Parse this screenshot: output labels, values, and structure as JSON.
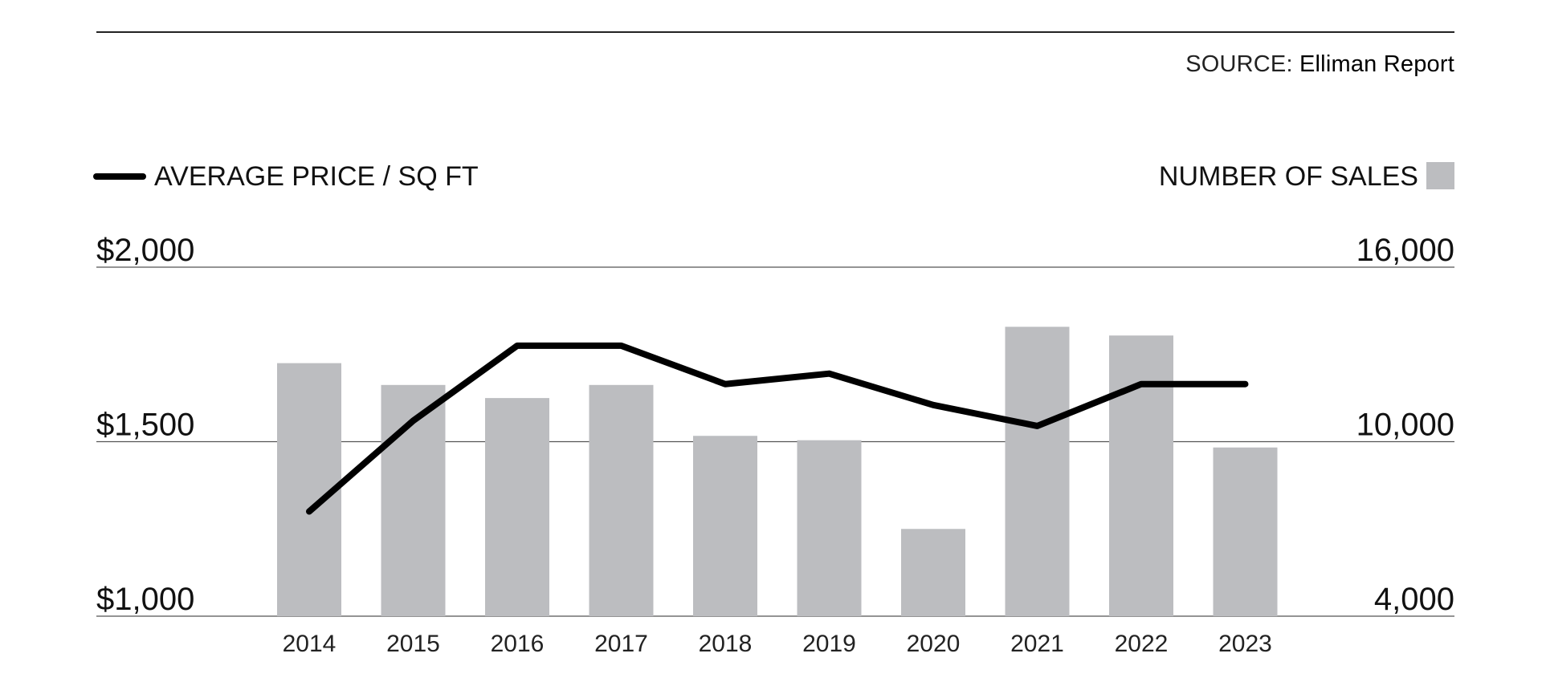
{
  "source": {
    "label": "SOURCE:",
    "name": "Elliman Report"
  },
  "legend": {
    "line_label": "AVERAGE PRICE / SQ FT",
    "bar_label": "NUMBER OF SALES"
  },
  "colors": {
    "line": "#000000",
    "bar": "#bcbdc0",
    "grid": "#555555"
  },
  "chart_data": {
    "type": "bar+line",
    "categories": [
      "2014",
      "2015",
      "2016",
      "2017",
      "2018",
      "2019",
      "2020",
      "2021",
      "2022",
      "2023"
    ],
    "bar_series": {
      "name": "NUMBER OF SALES",
      "axis": "right",
      "values": [
        12700,
        11950,
        11500,
        11950,
        10200,
        10050,
        7000,
        13950,
        13650,
        9800
      ]
    },
    "line_series": {
      "name": "AVERAGE PRICE / SQ FT",
      "axis": "left",
      "values": [
        1300,
        1560,
        1775,
        1775,
        1665,
        1695,
        1605,
        1545,
        1665,
        1665
      ]
    },
    "left_axis": {
      "ticks": [
        "$1,000",
        "$1,500",
        "$2,000"
      ],
      "tick_values": [
        1000,
        1500,
        2000
      ],
      "range": [
        1000,
        2000
      ]
    },
    "right_axis": {
      "ticks": [
        "4,000",
        "10,000",
        "16,000"
      ],
      "tick_values": [
        4000,
        10000,
        16000
      ],
      "range": [
        4000,
        16000
      ]
    },
    "grid": true,
    "legend_placement": "top"
  }
}
